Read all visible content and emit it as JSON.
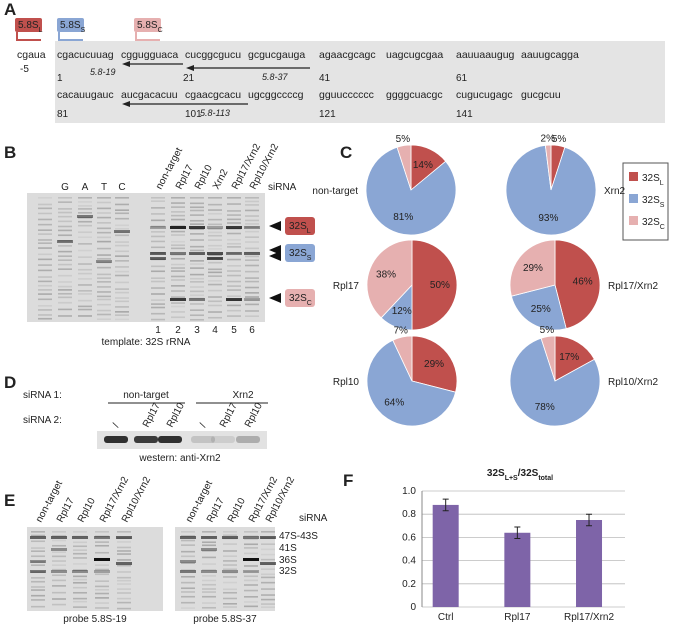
{
  "panel_labels": [
    "A",
    "B",
    "C",
    "D",
    "E",
    "F"
  ],
  "colors": [
    "#c0504d",
    "#8aa6d4",
    "#e6b0b0"
  ],
  "panel_a": {
    "boxes": [
      {
        "base": "5.8S",
        "sub": "L"
      },
      {
        "base": "5.8S",
        "sub": "S"
      },
      {
        "base": "5.8S",
        "sub": "C"
      }
    ],
    "row1": [
      "cgaua",
      "cgacucuuag",
      "cggugguaca",
      "cucggcgucu",
      "gcgucgauga",
      "agaacgcagc",
      "uagcugcgaa",
      "aauuaaugug",
      "aauugcagga"
    ],
    "row1_numbers": [
      "-5",
      "1",
      "21",
      "41",
      "61"
    ],
    "row2": [
      "cacauugauc",
      "aucgacacuu",
      "cgaacgcacu",
      "ugcggccccg",
      "gguucccccc",
      "ggggcuacgc",
      "cugucugagc",
      "gucgcuu"
    ],
    "row2_numbers": [
      "81",
      "101",
      "121",
      "141"
    ],
    "probes": [
      "5.8-19",
      "5.8-37",
      "5.8-113"
    ]
  },
  "panel_b": {
    "lanes": [
      "G",
      "A",
      "T",
      "C"
    ],
    "sirna_lanes": [
      "non-target",
      "Rpl17",
      "Rpl10",
      "Xrn2",
      "Rpl17/Xrn2",
      "Rpl10/Xrn2"
    ],
    "sirna_label": "siRNA",
    "lane_numbers": [
      "1",
      "2",
      "3",
      "4",
      "5",
      "6"
    ],
    "tags": [
      {
        "base": "32S",
        "sub": "L"
      },
      {
        "base": "32S",
        "sub": "S"
      },
      {
        "base": "32S",
        "sub": "C"
      }
    ],
    "caption": "template: 32S rRNA"
  },
  "panel_c": {
    "legend": [
      {
        "base": "32S",
        "sub": "L"
      },
      {
        "base": "32S",
        "sub": "S"
      },
      {
        "base": "32S",
        "sub": "C"
      }
    ]
  },
  "panel_d": {
    "row1_label": "siRNA 1:",
    "groups": [
      "non-target",
      "Xrn2"
    ],
    "row2_label": "siRNA 2:",
    "lanes": [
      "/",
      "Rpl17",
      "Rpl10",
      "/",
      "Rpl17",
      "Rpl10"
    ],
    "caption": "western: anti-Xrn2"
  },
  "panel_e": {
    "gels": [
      {
        "lanes": [
          "non-target",
          "Rpl17",
          "Rpl10",
          "Rpl17/Xrn2",
          "Rpl10/Xrn2"
        ],
        "caption": "probe 5.8S-19"
      },
      {
        "lanes": [
          "non-target",
          "Rpl17",
          "Rpl10",
          "Rpl17/Xrn2",
          "Rpl10/Xrn2"
        ],
        "caption": "probe 5.8S-37"
      }
    ],
    "sirna_label": "siRNA",
    "markers": [
      "47S-43S",
      "41S",
      "36S",
      "32S"
    ]
  },
  "chart_data": [
    {
      "type": "pie",
      "title": "non-target",
      "values": [
        14,
        81,
        5
      ],
      "value_labels": [
        "14%",
        "81%",
        "5%"
      ]
    },
    {
      "type": "pie",
      "title": "Xrn2",
      "values": [
        5,
        93,
        2
      ],
      "value_labels": [
        "5%",
        "93%",
        "2%"
      ]
    },
    {
      "type": "pie",
      "title": "Rpl17",
      "values": [
        50,
        12,
        38
      ],
      "value_labels": [
        "50%",
        "12%",
        "38%"
      ]
    },
    {
      "type": "pie",
      "title": "Rpl17/Xrn2",
      "values": [
        46,
        25,
        29
      ],
      "value_labels": [
        "46%",
        "25%",
        "29%"
      ]
    },
    {
      "type": "pie",
      "title": "Rpl10",
      "values": [
        29,
        64,
        7
      ],
      "value_labels": [
        "29%",
        "64%",
        "7%"
      ]
    },
    {
      "type": "pie",
      "title": "Rpl10/Xrn2",
      "values": [
        17,
        78,
        5
      ],
      "value_labels": [
        "17%",
        "78%",
        "5%"
      ]
    },
    {
      "type": "bar",
      "title": [
        {
          "text": "32S"
        },
        {
          "text": "L+S",
          "sub": true
        },
        {
          "text": "/32S"
        },
        {
          "text": "total",
          "sub": true
        }
      ],
      "categories": [
        "Ctrl",
        "Rpl17",
        "Rpl17/Xrn2"
      ],
      "values": [
        0.88,
        0.64,
        0.75
      ],
      "errors": [
        0.05,
        0.05,
        0.05
      ],
      "color": "#7e64a8",
      "ylim": [
        0,
        1
      ],
      "yticks": [
        0,
        0.2,
        0.4,
        0.6,
        0.8,
        {
          "value": 1,
          "label": "1.0"
        }
      ],
      "grid": true
    }
  ]
}
